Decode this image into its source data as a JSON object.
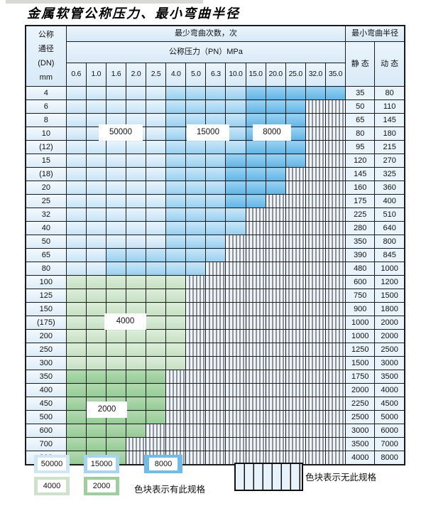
{
  "title": "金属软管公称压力、最小弯曲半径",
  "table": {
    "header": {
      "dn_lines": [
        "公称",
        "通径",
        "(DN)",
        "mm"
      ],
      "bend_times": "最少弯曲次数，次",
      "pressure_title": "公称压力（PN）MPa",
      "pressures": [
        "0.6",
        "1.0",
        "1.6",
        "2.0",
        "2.5",
        "4.0",
        "5.0",
        "6.3",
        "10.0",
        "15.0",
        "20.0",
        "25.0",
        "32.0",
        "35.0"
      ],
      "radius_title": "最小弯曲半径",
      "static_label": "静 态",
      "dynamic_label": "动 态"
    },
    "cell_code_meaning": {
      "a": "50000次-有此规格",
      "b": "15000次-有此规格",
      "c": "8000次-有此规格",
      "d": "4000次-有此规格",
      "e": "2000次-有此规格",
      "x": "无此规格"
    },
    "rows": [
      {
        "dn": "4",
        "cells": "aaaaabbbbccccc",
        "static": "35",
        "dynamic": "80"
      },
      {
        "dn": "6",
        "cells": "aaaaabbbbcccxx",
        "static": "50",
        "dynamic": "110"
      },
      {
        "dn": "8",
        "cells": "aaaaabbbbcccxx",
        "static": "65",
        "dynamic": "145"
      },
      {
        "dn": "10",
        "cells": "aaaaabbbbcccxx",
        "static": "80",
        "dynamic": "180"
      },
      {
        "dn": "(12)",
        "cells": "aaaaabbbbcccxx",
        "static": "95",
        "dynamic": "215"
      },
      {
        "dn": "15",
        "cells": "aaaaabbbccccxx",
        "static": "120",
        "dynamic": "270"
      },
      {
        "dn": "(18)",
        "cells": "aaaaabbbcccxxx",
        "static": "145",
        "dynamic": "325"
      },
      {
        "dn": "20",
        "cells": "aaaaabbbcccxxx",
        "static": "160",
        "dynamic": "360"
      },
      {
        "dn": "25",
        "cells": "aaaaabbbccxxxx",
        "static": "175",
        "dynamic": "400"
      },
      {
        "dn": "32",
        "cells": "aaaaabbbbxxxxx",
        "static": "225",
        "dynamic": "510"
      },
      {
        "dn": "40",
        "cells": "aaaaabbbbxxxxx",
        "static": "280",
        "dynamic": "640"
      },
      {
        "dn": "50",
        "cells": "aaaaabbbxxxxxx",
        "static": "350",
        "dynamic": "800"
      },
      {
        "dn": "65",
        "cells": "aabbbbbbxxxxxx",
        "static": "390",
        "dynamic": "845"
      },
      {
        "dn": "80",
        "cells": "aabbbbbxxxxxxx",
        "static": "480",
        "dynamic": "1000"
      },
      {
        "dn": "100",
        "cells": "ddddddxxxxxxxx",
        "static": "600",
        "dynamic": "1200"
      },
      {
        "dn": "125",
        "cells": "ddddddxxxxxxxx",
        "static": "750",
        "dynamic": "1500"
      },
      {
        "dn": "150",
        "cells": "ddddddxxxxxxxx",
        "static": "900",
        "dynamic": "1800"
      },
      {
        "dn": "(175)",
        "cells": "ddddddxxxxxxxx",
        "static": "1000",
        "dynamic": "2000"
      },
      {
        "dn": "200",
        "cells": "ddddddxxxxxxxx",
        "static": "1000",
        "dynamic": "2000"
      },
      {
        "dn": "250",
        "cells": "ddddddxxxxxxxx",
        "static": "1250",
        "dynamic": "2500"
      },
      {
        "dn": "300",
        "cells": "ddddddxxxxxxxx",
        "static": "1500",
        "dynamic": "3000"
      },
      {
        "dn": "350",
        "cells": "eeeeexxxxxxxxx",
        "static": "1750",
        "dynamic": "3500"
      },
      {
        "dn": "400",
        "cells": "eeeeexxxxxxxxx",
        "static": "2000",
        "dynamic": "4000"
      },
      {
        "dn": "450",
        "cells": "eeeeexxxxxxxxx",
        "static": "2250",
        "dynamic": "4500"
      },
      {
        "dn": "500",
        "cells": "eeeeexxxxxxxxx",
        "static": "2500",
        "dynamic": "5000"
      },
      {
        "dn": "600",
        "cells": "eeeexxxxxxxxxx",
        "static": "3000",
        "dynamic": "6000"
      },
      {
        "dn": "700",
        "cells": "eeexxxxxxxxxxx",
        "static": "3500",
        "dynamic": "7000"
      },
      {
        "dn": "800",
        "cells": "eeexxxxxxxxxxx",
        "static": "4000",
        "dynamic": "8000"
      }
    ],
    "overlays": [
      {
        "label": "50000"
      },
      {
        "label": "15000"
      },
      {
        "label": "8000"
      },
      {
        "label": "4000"
      },
      {
        "label": "2000"
      }
    ]
  },
  "legend": {
    "items": [
      {
        "label": "50000",
        "color": "#cfe6f7"
      },
      {
        "label": "15000",
        "color": "#a5d5f1"
      },
      {
        "label": "8000",
        "color": "#6fbce9"
      },
      {
        "label": "4000",
        "color": "#cce3c9"
      },
      {
        "label": "2000",
        "color": "#9ccf9c"
      }
    ],
    "has_spec_text": "色块表示有此规格",
    "no_spec_text": "色块表示无此规格"
  }
}
